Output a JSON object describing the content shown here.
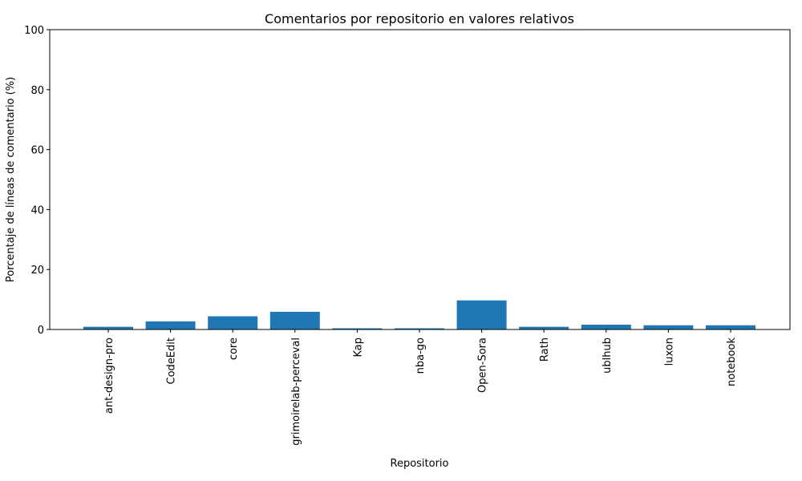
{
  "chart_data": {
    "type": "bar",
    "title": "Comentarios por repositorio en valores relativos",
    "xlabel": "Repositorio",
    "ylabel": "Porcentaje de líneas de comentario (%)",
    "ylim": [
      0,
      100
    ],
    "yticks": [
      "0",
      "20",
      "40",
      "60",
      "80",
      "100"
    ],
    "categories": [
      "ant-design-pro",
      "CodeEdit",
      "core",
      "grimoirelab-perceval",
      "Kap",
      "nba-go",
      "Open-Sora",
      "Rath",
      "ublhub",
      "luxon",
      "notebook"
    ],
    "values": [
      0.9,
      2.7,
      4.4,
      5.9,
      0.4,
      0.4,
      9.7,
      0.9,
      1.6,
      1.4,
      1.4
    ],
    "bar_color": "#1f77b4",
    "grid": false
  }
}
